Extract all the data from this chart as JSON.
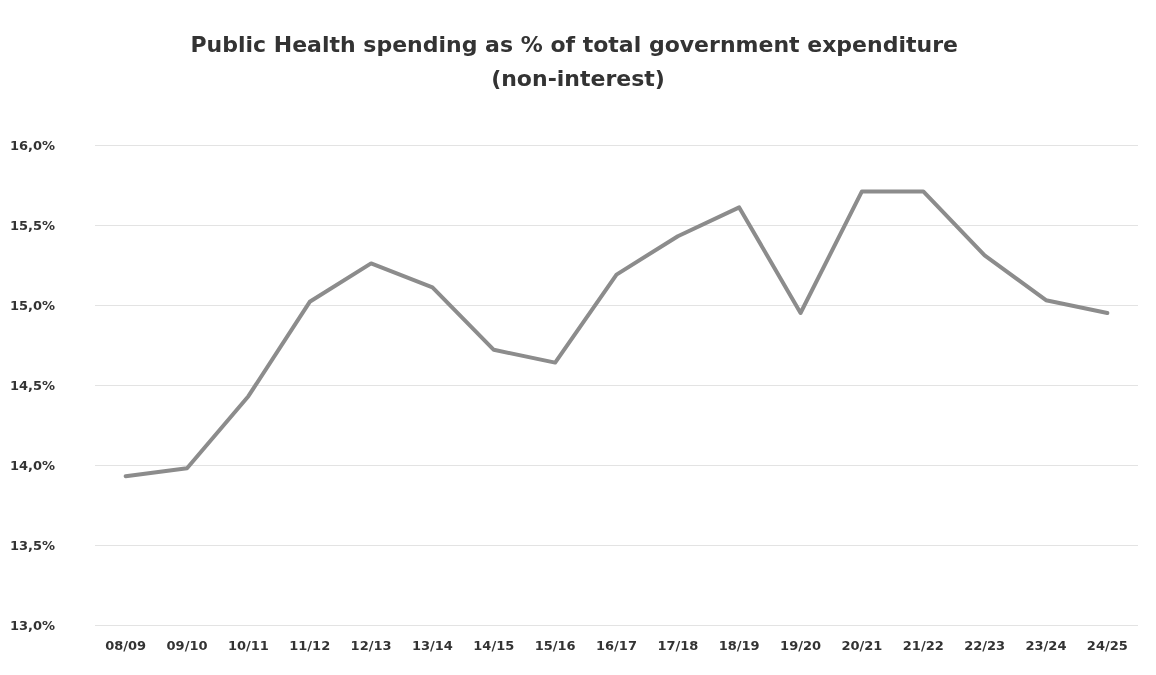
{
  "chart_data": {
    "type": "line",
    "title": "Public Health spending as % of total government expenditure (non-interest)",
    "categories": [
      "08/09",
      "09/10",
      "10/11",
      "11/12",
      "12/13",
      "13/14",
      "14/15",
      "15/16",
      "16/17",
      "17/18",
      "18/19",
      "19/20",
      "20/21",
      "21/22",
      "22/23",
      "23/24",
      "24/25"
    ],
    "series": [
      {
        "color": "#8c8c8c",
        "values": [
          13.93,
          13.98,
          14.43,
          15.02,
          15.26,
          15.11,
          14.72,
          14.64,
          15.19,
          15.43,
          15.61,
          14.95,
          15.71,
          15.71,
          15.31,
          15.03,
          14.95
        ]
      }
    ],
    "ylim": [
      13,
      16
    ],
    "yticks": [
      {
        "value": 13,
        "label": "13,0%"
      },
      {
        "value": 13.5,
        "label": "13,5%"
      },
      {
        "value": 14,
        "label": "14,0%"
      },
      {
        "value": 14.5,
        "label": "14,5%"
      },
      {
        "value": 15,
        "label": "15,0%"
      },
      {
        "value": 15.5,
        "label": "15,5%"
      },
      {
        "value": 16,
        "label": "16,0%"
      }
    ],
    "grid": "y",
    "marker": "none",
    "line_style": "solid"
  }
}
